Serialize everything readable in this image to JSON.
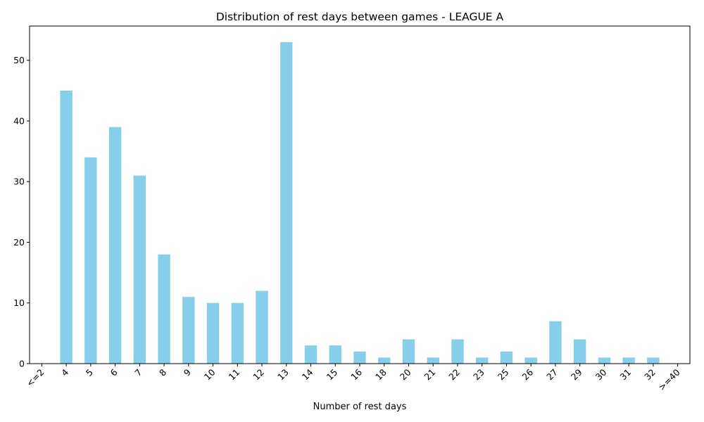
{
  "chart_data": {
    "type": "bar",
    "title": "Distribution of rest days between games - LEAGUE A",
    "xlabel": "Number of rest days",
    "ylabel": "",
    "categories": [
      "<=2",
      "4",
      "5",
      "6",
      "7",
      "8",
      "9",
      "10",
      "11",
      "12",
      "13",
      "14",
      "15",
      "16",
      "18",
      "20",
      "21",
      "22",
      "23",
      "25",
      "26",
      "27",
      "29",
      "30",
      "31",
      "32",
      ">=40"
    ],
    "values": [
      0,
      45,
      34,
      39,
      31,
      18,
      11,
      10,
      10,
      12,
      53,
      3,
      3,
      2,
      1,
      4,
      1,
      4,
      1,
      2,
      1,
      7,
      4,
      1,
      1,
      1,
      0
    ],
    "yticks": [
      0,
      10,
      20,
      30,
      40,
      50
    ],
    "ylim": [
      0,
      55.65
    ],
    "bar_color": "#87ceeb",
    "grid": false,
    "legend": "none"
  }
}
